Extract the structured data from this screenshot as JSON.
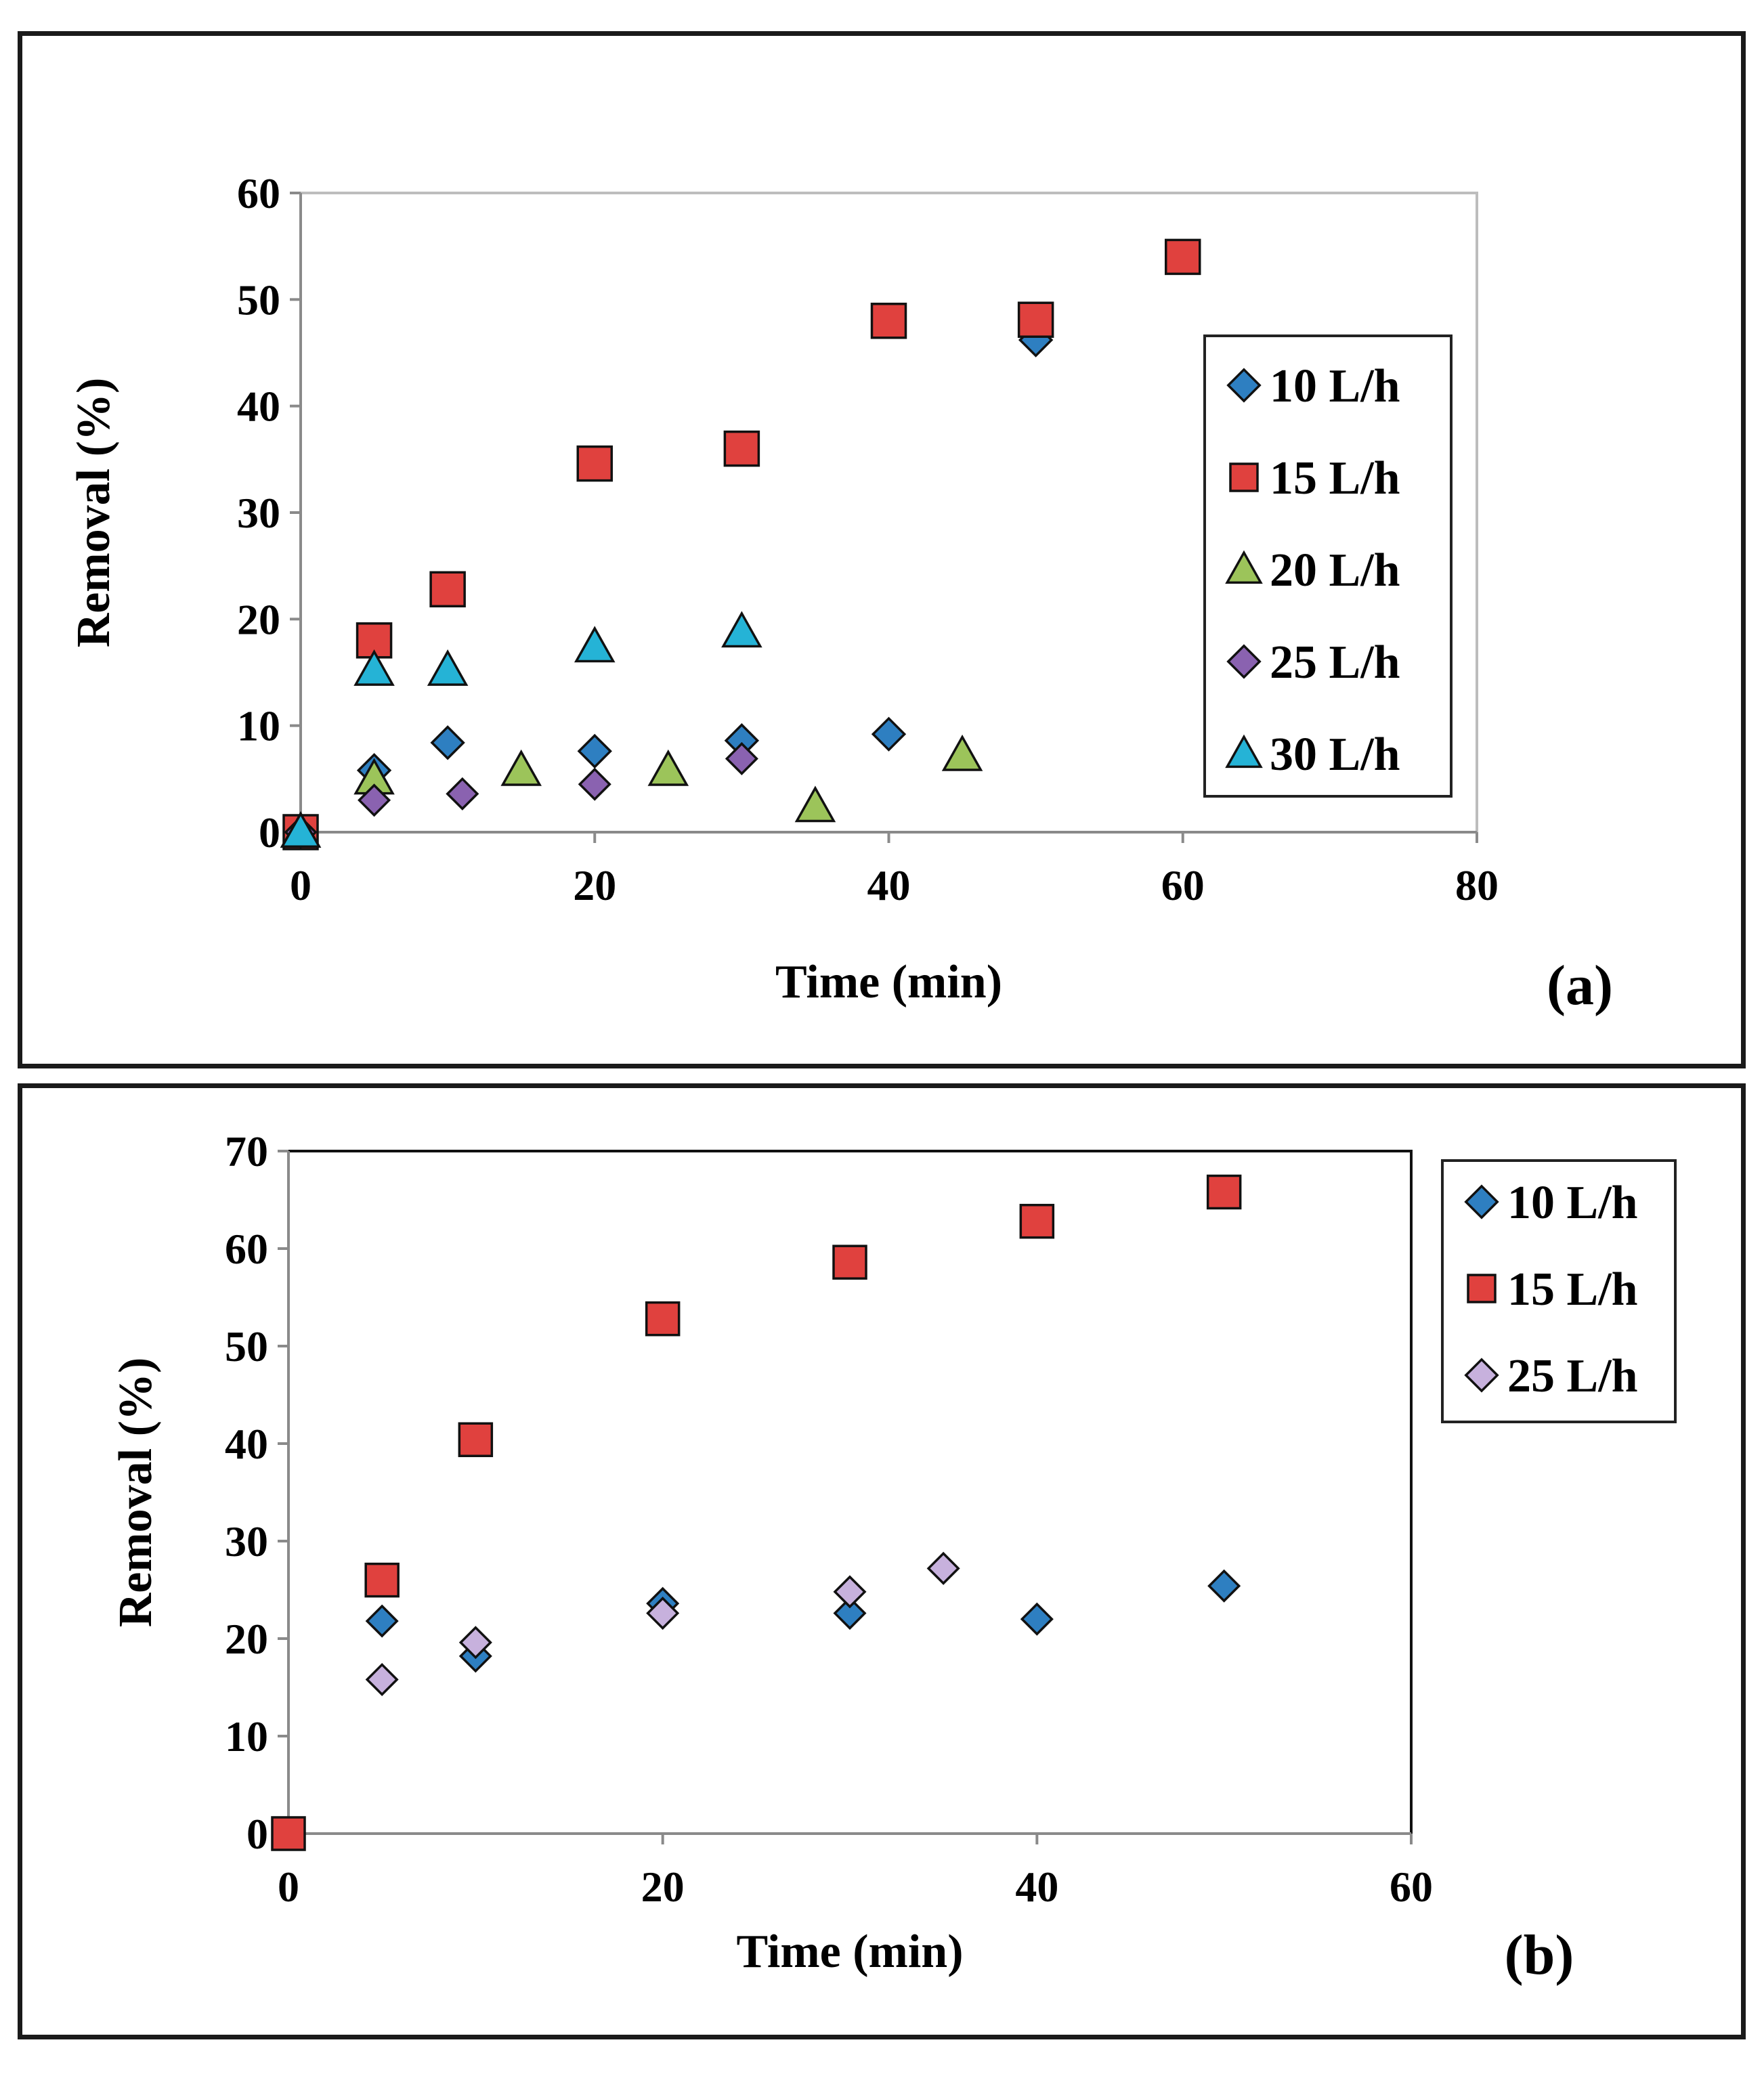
{
  "chart_data": [
    {
      "type": "scatter",
      "panel_label": "(a)",
      "xlabel": "Time (min)",
      "ylabel": "Removal (%)",
      "xlim": [
        0,
        80
      ],
      "ylim": [
        0,
        60
      ],
      "xticks": [
        0,
        20,
        40,
        60,
        80
      ],
      "yticks": [
        0,
        10,
        20,
        30,
        40,
        50,
        60
      ],
      "legend_position": "right",
      "series": [
        {
          "name": "10 L/h",
          "marker": "diamond",
          "color": "#2e7fc1",
          "x": [
            0,
            5,
            10,
            20,
            30,
            40,
            50
          ],
          "y": [
            0,
            5.8,
            8.4,
            7.6,
            8.6,
            9.2,
            46.2
          ]
        },
        {
          "name": "15 L/h",
          "marker": "square",
          "color": "#e0413e",
          "x": [
            0,
            5,
            10,
            20,
            30,
            40,
            50,
            60
          ],
          "y": [
            0,
            18.0,
            22.8,
            34.6,
            36.0,
            48.0,
            48.1,
            54.0
          ]
        },
        {
          "name": "20 L/h",
          "marker": "triangle",
          "color": "#9cc45a",
          "x": [
            0,
            5,
            15,
            25,
            35,
            45
          ],
          "y": [
            0,
            5.0,
            5.8,
            5.8,
            2.4,
            7.2
          ]
        },
        {
          "name": "25 L/h",
          "marker": "diamond",
          "color": "#8a62b0",
          "x": [
            0,
            5,
            11,
            20,
            30
          ],
          "y": [
            0,
            3.0,
            3.6,
            4.5,
            6.9
          ]
        },
        {
          "name": "30 L/h",
          "marker": "triangle",
          "color": "#25b3d6",
          "x": [
            0,
            5,
            10,
            20,
            30
          ],
          "y": [
            0,
            15.2,
            15.2,
            17.4,
            18.8
          ]
        }
      ]
    },
    {
      "type": "scatter",
      "panel_label": "(b)",
      "xlabel": "Time (min)",
      "ylabel": "Removal (%)",
      "xlim": [
        0,
        60
      ],
      "ylim": [
        0,
        70
      ],
      "xticks": [
        0,
        20,
        40,
        60
      ],
      "yticks": [
        0,
        10,
        20,
        30,
        40,
        50,
        60,
        70
      ],
      "legend_position": "top-right",
      "series": [
        {
          "name": "10 L/h",
          "marker": "diamond",
          "color": "#2e7fc1",
          "x": [
            5,
            10,
            20,
            30,
            40,
            50
          ],
          "y": [
            21.8,
            18.2,
            23.6,
            22.6,
            22.0,
            25.4
          ]
        },
        {
          "name": "15 L/h",
          "marker": "square",
          "color": "#e0413e",
          "x": [
            0,
            5,
            10,
            20,
            30,
            40,
            50
          ],
          "y": [
            0,
            26.0,
            40.4,
            52.8,
            58.6,
            62.8,
            65.8
          ]
        },
        {
          "name": "25 L/h",
          "marker": "diamond",
          "color": "#c7b1dd",
          "x": [
            5,
            10,
            20,
            30,
            35
          ],
          "y": [
            15.8,
            19.6,
            22.6,
            24.8,
            27.2
          ]
        }
      ]
    }
  ]
}
